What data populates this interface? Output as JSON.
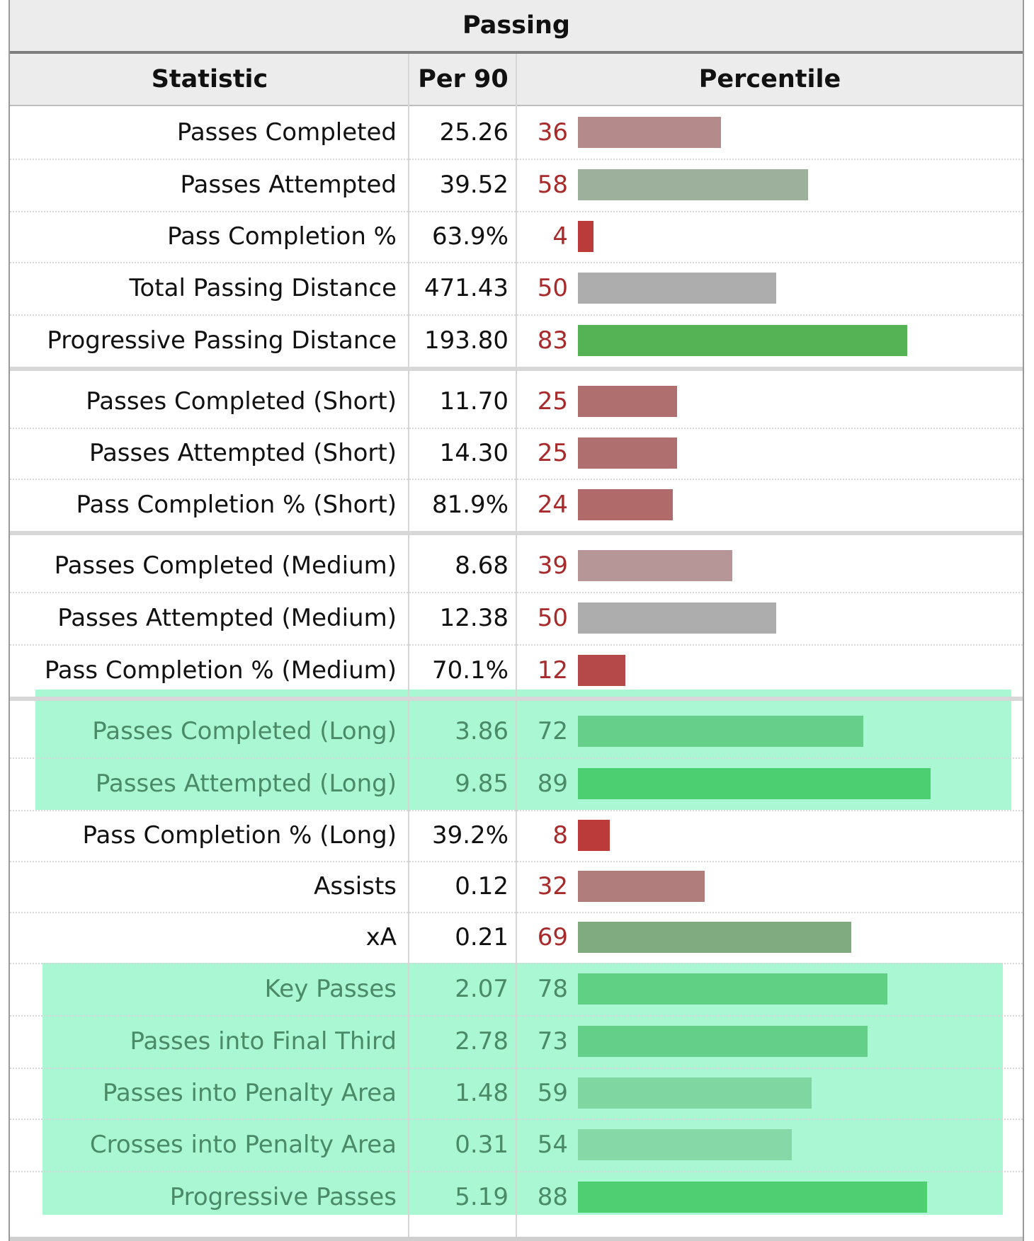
{
  "title": "Passing",
  "columns": {
    "statistic": "Statistic",
    "per90": "Per 90",
    "percentile": "Percentile"
  },
  "chart_data": {
    "type": "bar",
    "orientation": "horizontal",
    "title": "Passing",
    "xlim": [
      0,
      100
    ],
    "categories": [
      "Passes Completed",
      "Passes Attempted",
      "Pass Completion %",
      "Total Passing Distance",
      "Progressive Passing Distance",
      "Passes Completed (Short)",
      "Passes Attempted (Short)",
      "Pass Completion % (Short)",
      "Passes Completed (Medium)",
      "Passes Attempted (Medium)",
      "Pass Completion % (Medium)",
      "Passes Completed (Long)",
      "Passes Attempted (Long)",
      "Pass Completion % (Long)",
      "Assists",
      "xA",
      "Key Passes",
      "Passes into Final Third",
      "Passes into Penalty Area",
      "Crosses into Penalty Area",
      "Progressive Passes"
    ],
    "rows": [
      {
        "stat": "Passes Completed",
        "per90": "25.26",
        "pct": 36,
        "color": "#b48a8a"
      },
      {
        "stat": "Passes Attempted",
        "per90": "39.52",
        "pct": 58,
        "color": "#9db09b"
      },
      {
        "stat": "Pass Completion %",
        "per90": "63.9%",
        "pct": 4,
        "color": "#bb3b3b"
      },
      {
        "stat": "Total Passing Distance",
        "per90": "471.43",
        "pct": 50,
        "color": "#adadad"
      },
      {
        "stat": "Progressive Passing Distance",
        "per90": "193.80",
        "pct": 83,
        "color": "#55b255"
      },
      {
        "stat": "Passes Completed (Short)",
        "per90": "11.70",
        "pct": 25,
        "color": "#b06f6f"
      },
      {
        "stat": "Passes Attempted (Short)",
        "per90": "14.30",
        "pct": 25,
        "color": "#b06f6f"
      },
      {
        "stat": "Pass Completion % (Short)",
        "per90": "81.9%",
        "pct": 24,
        "color": "#b06a6a"
      },
      {
        "stat": "Passes Completed (Medium)",
        "per90": "8.68",
        "pct": 39,
        "color": "#b69696"
      },
      {
        "stat": "Passes Attempted (Medium)",
        "per90": "12.38",
        "pct": 50,
        "color": "#adadad"
      },
      {
        "stat": "Pass Completion % (Medium)",
        "per90": "70.1%",
        "pct": 12,
        "color": "#b54848"
      },
      {
        "stat": "Passes Completed (Long)",
        "per90": "3.86",
        "pct": 72,
        "color": "#66d08a"
      },
      {
        "stat": "Passes Attempted (Long)",
        "per90": "9.85",
        "pct": 89,
        "color": "#4ccf70"
      },
      {
        "stat": "Pass Completion % (Long)",
        "per90": "39.2%",
        "pct": 8,
        "color": "#bb3b3b"
      },
      {
        "stat": "Assists",
        "per90": "0.12",
        "pct": 32,
        "color": "#b07c7c"
      },
      {
        "stat": "xA",
        "per90": "0.21",
        "pct": 69,
        "color": "#80ab80"
      },
      {
        "stat": "Key Passes",
        "per90": "2.07",
        "pct": 78,
        "color": "#5fd084"
      },
      {
        "stat": "Passes into Final Third",
        "per90": "2.78",
        "pct": 73,
        "color": "#64cf88"
      },
      {
        "stat": "Passes into Penalty Area",
        "per90": "1.48",
        "pct": 59,
        "color": "#7fd6a0"
      },
      {
        "stat": "Crosses into Penalty Area",
        "per90": "0.31",
        "pct": 54,
        "color": "#86d8a6"
      },
      {
        "stat": "Progressive Passes",
        "per90": "5.19",
        "pct": 88,
        "color": "#4fcf72"
      }
    ]
  }
}
